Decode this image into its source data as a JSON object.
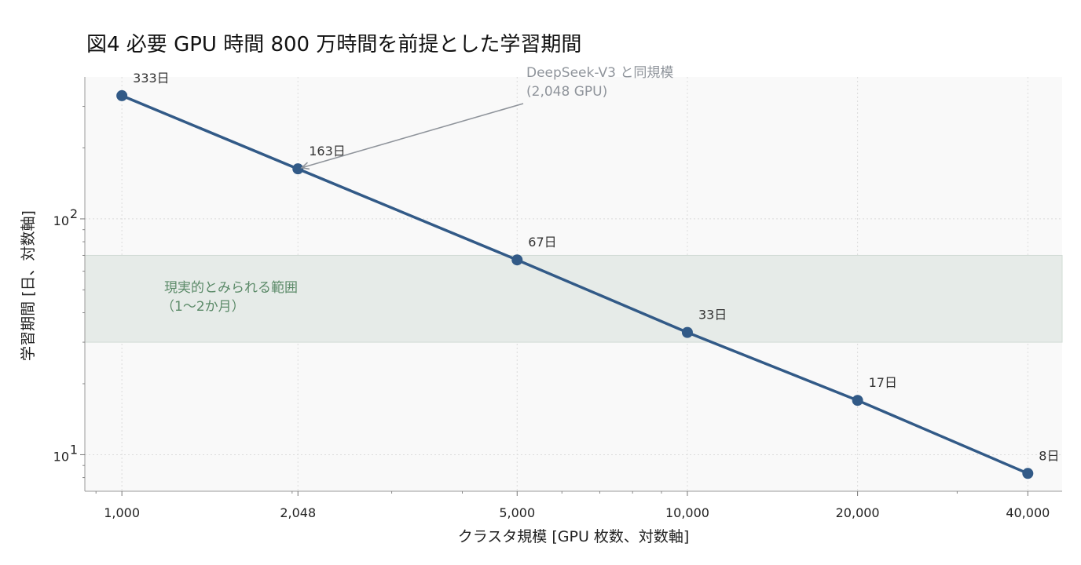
{
  "chart_data": {
    "type": "line",
    "title": "図4  必要 GPU 時間 800 万時間を前提とした学習期間",
    "xlabel": "クラスタ規模 [GPU 枚数、対数軸]",
    "ylabel": "学習期間 [日、対数軸]",
    "x_scale": "log",
    "y_scale": "log",
    "xlim": [
      860,
      46000
    ],
    "ylim": [
      7,
      400
    ],
    "x_ticks": [
      1000,
      2048,
      5000,
      10000,
      20000,
      40000
    ],
    "x_tick_labels": [
      "1,000",
      "2,048",
      "5,000",
      "10,000",
      "20,000",
      "40,000"
    ],
    "y_ticks": [
      10,
      100
    ],
    "y_tick_labels": [
      {
        "base": "10",
        "exp": "1"
      },
      {
        "base": "10",
        "exp": "2"
      }
    ],
    "grid": true,
    "series": [
      {
        "color": "#325a87",
        "x": [
          1000,
          2048,
          5000,
          10000,
          20000,
          40000
        ],
        "y": [
          333,
          163,
          67,
          33,
          17,
          8.33
        ],
        "labels": [
          "333日",
          "163日",
          "67日",
          "33日",
          "17日",
          "8日"
        ]
      }
    ],
    "band": {
      "y_range": [
        30,
        70
      ],
      "color": "#e6ebe8",
      "label_lines": [
        "現実的とみられる範囲",
        "（1〜2か月）"
      ]
    },
    "annotation": {
      "lines": [
        "DeepSeek-V3 と同規模",
        "(2,048 GPU)"
      ],
      "target_x": 2048,
      "target_y": 163
    }
  }
}
